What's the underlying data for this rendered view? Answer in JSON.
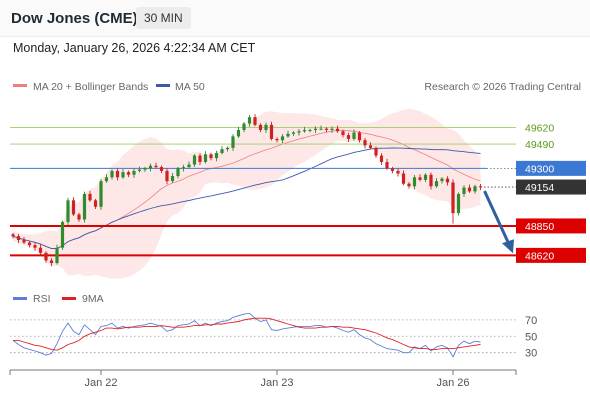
{
  "header": {
    "symbol": "Dow Jones (CME)",
    "timeframe": "30 MIN",
    "datetime": "Monday, January 26, 2026 4:22:34 AM CET"
  },
  "legend": {
    "bollinger": "MA 20 + Bollinger Bands",
    "ma50": "MA 50",
    "credit": "Research © 2026 Trading Central",
    "rsi": "RSI",
    "rsi_ma": "9MA"
  },
  "colors": {
    "bollinger": "#f08080",
    "bollinger_fill": "#fde3e3",
    "ma50": "#3d5aa8",
    "bull": "#2e8b2e",
    "bear": "#cc2222",
    "support": "#dd0000",
    "resistance_green": "#99cc66",
    "pivot": "#3a78d4",
    "last_price": "#333333",
    "arrow": "#2f5f9e",
    "rsi": "#5b7fd6",
    "rsi_ma": "#dd2222"
  },
  "chart_data": [
    {
      "type": "candlestick",
      "x_axis": {
        "tick_labels": [
          "Jan 22",
          "Jan 23",
          "Jan 26"
        ],
        "tick_index": [
          16,
          48,
          80
        ]
      },
      "y_range": [
        48490,
        49850
      ],
      "levels": [
        {
          "value": 49620,
          "label": "49620",
          "role": "resistance"
        },
        {
          "value": 49490,
          "label": "49490",
          "role": "resistance"
        },
        {
          "value": 49300,
          "label": "49300",
          "role": "pivot"
        },
        {
          "value": 49154,
          "label": "49154",
          "role": "last"
        },
        {
          "value": 48850,
          "label": "48850",
          "role": "support"
        },
        {
          "value": 48620,
          "label": "48620",
          "role": "support"
        }
      ],
      "close": [
        48770,
        48740,
        48720,
        48700,
        48680,
        48640,
        48580,
        48560,
        48680,
        48880,
        49050,
        48940,
        48900,
        49100,
        49050,
        49000,
        49200,
        49230,
        49280,
        49230,
        49270,
        49250,
        49280,
        49290,
        49300,
        49320,
        49310,
        49280,
        49200,
        49240,
        49300,
        49310,
        49330,
        49400,
        49350,
        49410,
        49380,
        49420,
        49450,
        49460,
        49550,
        49600,
        49650,
        49700,
        49640,
        49600,
        49640,
        49530,
        49520,
        49550,
        49570,
        49580,
        49590,
        49600,
        49600,
        49610,
        49610,
        49600,
        49610,
        49590,
        49560,
        49530,
        49580,
        49520,
        49480,
        49460,
        49400,
        49350,
        49300,
        49280,
        49260,
        49180,
        49160,
        49230,
        49210,
        49250,
        49160,
        49200,
        49220,
        49190,
        48950,
        49100,
        49150,
        49120,
        49160,
        49154
      ]
    },
    {
      "type": "line",
      "name": "RSI",
      "y_ticks": [
        70,
        50,
        30
      ],
      "y_range": [
        15,
        82
      ],
      "rsi": [
        45,
        40,
        36,
        34,
        32,
        30,
        27,
        29,
        41,
        56,
        66,
        56,
        52,
        64,
        58,
        52,
        62,
        63,
        66,
        60,
        62,
        60,
        62,
        63,
        64,
        66,
        64,
        62,
        56,
        58,
        63,
        64,
        65,
        69,
        63,
        66,
        63,
        66,
        68,
        69,
        73,
        75,
        77,
        78,
        72,
        68,
        70,
        58,
        57,
        59,
        60,
        61,
        62,
        62,
        62,
        63,
        63,
        61,
        62,
        60,
        57,
        55,
        58,
        52,
        48,
        46,
        41,
        38,
        35,
        34,
        33,
        30,
        30,
        37,
        35,
        39,
        32,
        37,
        39,
        36,
        25,
        39,
        44,
        41,
        44,
        43
      ],
      "ma9": [
        45,
        45,
        43,
        41,
        39,
        38,
        36,
        34,
        33,
        36,
        40,
        42,
        45,
        50,
        53,
        55,
        57,
        60,
        60,
        59,
        60,
        61,
        61,
        61,
        62,
        62,
        62,
        63,
        62,
        61,
        61,
        61,
        62,
        63,
        63,
        64,
        64,
        65,
        65,
        66,
        67,
        68,
        70,
        71,
        72,
        72,
        72,
        71,
        69,
        67,
        65,
        63,
        61,
        60,
        60,
        60,
        61,
        61,
        62,
        62,
        61,
        61,
        60,
        59,
        58,
        56,
        54,
        51,
        48,
        46,
        43,
        40,
        37,
        36,
        35,
        35,
        34,
        34,
        35,
        35,
        35,
        36,
        37,
        38,
        39,
        40
      ]
    }
  ]
}
